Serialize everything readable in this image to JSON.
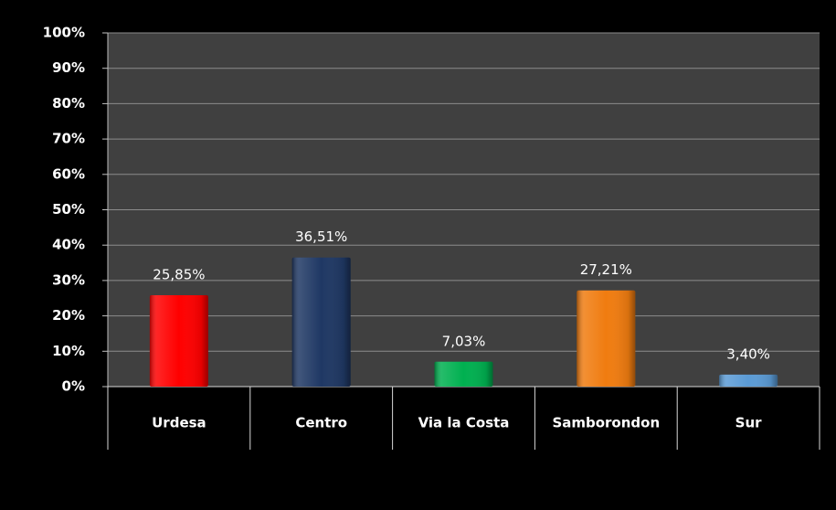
{
  "chart_data": {
    "type": "bar",
    "categories": [
      "Urdesa",
      "Centro",
      "Via la Costa",
      "Samborondon",
      "Sur"
    ],
    "values": [
      25.85,
      36.51,
      7.03,
      27.21,
      3.4
    ],
    "value_labels": [
      "25,85%",
      "36,51%",
      "7,03%",
      "27,21%",
      "3,40%"
    ],
    "colors": [
      "#ff0000",
      "#1f3864",
      "#00b050",
      "#f07c10",
      "#5b9bd5"
    ],
    "ylim": [
      0,
      100
    ],
    "yticks": [
      {
        "value": 0,
        "label": "0%"
      },
      {
        "value": 10,
        "label": "10%"
      },
      {
        "value": 20,
        "label": "20%"
      },
      {
        "value": 30,
        "label": "30%"
      },
      {
        "value": 40,
        "label": "40%"
      },
      {
        "value": 50,
        "label": "50%"
      },
      {
        "value": 60,
        "label": "60%"
      },
      {
        "value": 70,
        "label": "70%"
      },
      {
        "value": 80,
        "label": "80%"
      },
      {
        "value": 90,
        "label": "90%"
      },
      {
        "value": 100,
        "label": "100%"
      }
    ],
    "grid": true
  }
}
